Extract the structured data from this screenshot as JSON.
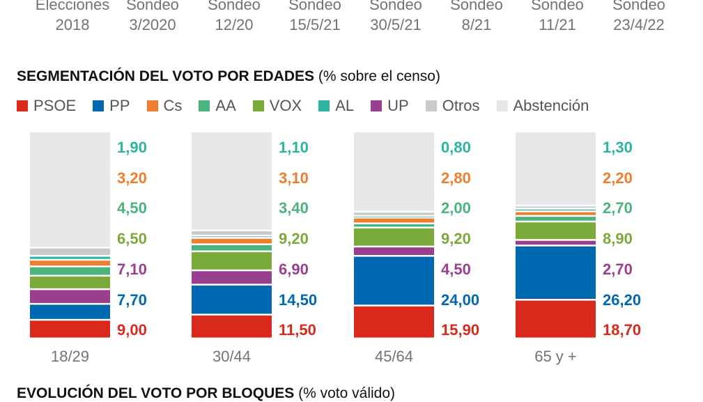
{
  "header_columns": [
    {
      "line1": "Elecciones",
      "line2": "2018"
    },
    {
      "line1": "Sondeo",
      "line2": "3/2020"
    },
    {
      "line1": "Sondeo",
      "line2": "12/20"
    },
    {
      "line1": "Sondeo",
      "line2": "15/5/21"
    },
    {
      "line1": "Sondeo",
      "line2": "30/5/21"
    },
    {
      "line1": "Sondeo",
      "line2": "8/21"
    },
    {
      "line1": "Sondeo",
      "line2": "11/21"
    },
    {
      "line1": "Sondeo",
      "line2": "23/4/22"
    }
  ],
  "chart_data": {
    "type": "bar",
    "stacked": true,
    "title": "SEGMENTACIÓN DEL VOTO POR EDADES",
    "subtitle": "(% sobre el censo)",
    "legend_position": "top",
    "categories": [
      "18/29",
      "30/44",
      "45/64",
      "65 y +"
    ],
    "series": [
      {
        "name": "PSOE",
        "color": "#d9291c",
        "values": [
          9.0,
          11.5,
          15.9,
          18.7
        ],
        "labels": [
          "9,00",
          "11,50",
          "15,90",
          "18,70"
        ]
      },
      {
        "name": "PP",
        "color": "#0067b1",
        "values": [
          7.7,
          14.5,
          24.0,
          26.2
        ],
        "labels": [
          "7,70",
          "14,50",
          "24,00",
          "26,20"
        ]
      },
      {
        "name": "UP",
        "color": "#9a3f8f",
        "values": [
          7.1,
          6.9,
          4.5,
          2.7
        ],
        "labels": [
          "7,10",
          "6,90",
          "4,50",
          "2,70"
        ]
      },
      {
        "name": "VOX",
        "color": "#7aab3a",
        "values": [
          6.5,
          9.2,
          9.2,
          8.9
        ],
        "labels": [
          "6,50",
          "9,20",
          "9,20",
          "8,90"
        ]
      },
      {
        "name": "AA",
        "color": "#4bb37e",
        "values": [
          4.5,
          3.4,
          2.0,
          2.7
        ],
        "labels": [
          "4,50",
          "3,40",
          "2,00",
          "2,70"
        ]
      },
      {
        "name": "Cs",
        "color": "#ef7d2e",
        "values": [
          3.2,
          3.1,
          2.8,
          2.2
        ],
        "labels": [
          "3,20",
          "3,10",
          "2,80",
          "2,20"
        ]
      },
      {
        "name": "AL",
        "color": "#2bb5a0",
        "values": [
          1.9,
          1.1,
          0.8,
          1.3
        ],
        "labels": [
          "1,90",
          "1,10",
          "0,80",
          "1,30"
        ]
      },
      {
        "name": "Otros",
        "color": "#c9cacc",
        "values": [
          4.0,
          2.5,
          2.0,
          1.5
        ]
      },
      {
        "name": "Abstención",
        "color": "#e6e7e9",
        "values": [
          56.1,
          47.8,
          38.8,
          35.8
        ]
      }
    ],
    "label_order": [
      "AL",
      "Cs",
      "AA",
      "VOX",
      "UP",
      "PP",
      "PSOE"
    ],
    "ylim": [
      0,
      100
    ]
  },
  "next_section_title": "EVOLUCIÓN DEL VOTO POR BLOQUES",
  "next_section_subtitle": "(% voto válido)"
}
